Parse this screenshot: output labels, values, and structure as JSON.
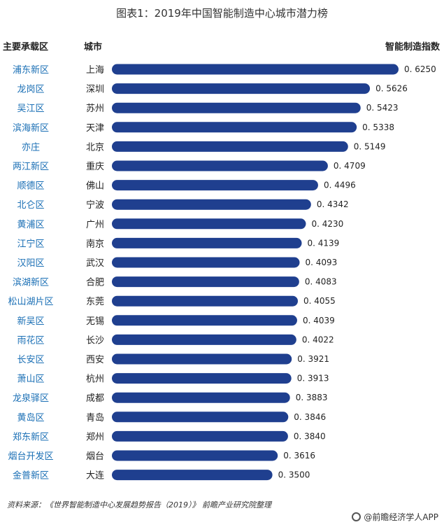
{
  "title": "图表1：2019年中国智能制造中心城市潜力榜",
  "headers": {
    "zone": "主要承载区",
    "city": "城市",
    "index": "智能制造指数"
  },
  "source": "资料来源：《世界智能制造中心发展趋势报告（2019）》 前瞻产业研究院整理",
  "brand": "@前瞻经济学人APP",
  "colors": {
    "bar": "#1f3f8f",
    "zone_text": "#1a6fb5"
  },
  "chart_data": {
    "type": "bar",
    "orientation": "horizontal",
    "categories": [
      "上海",
      "深圳",
      "苏州",
      "天津",
      "北京",
      "重庆",
      "佛山",
      "宁波",
      "广州",
      "南京",
      "武汉",
      "合肥",
      "东莞",
      "无锡",
      "长沙",
      "西安",
      "杭州",
      "成都",
      "青岛",
      "郑州",
      "烟台",
      "大连"
    ],
    "zones": [
      "浦东新区",
      "龙岗区",
      "吴江区",
      "滨海新区",
      "亦庄",
      "两江新区",
      "顺德区",
      "北仑区",
      "黄浦区",
      "江宁区",
      "汉阳区",
      "滨湖新区",
      "松山湖片区",
      "新吴区",
      "雨花区",
      "长安区",
      "萧山区",
      "龙泉驿区",
      "黄岛区",
      "郑东新区",
      "烟台开发区",
      "金普新区"
    ],
    "values": [
      0.625,
      0.5626,
      0.5423,
      0.5338,
      0.5149,
      0.4709,
      0.4496,
      0.4342,
      0.423,
      0.4139,
      0.4093,
      0.4083,
      0.4055,
      0.4039,
      0.4022,
      0.3921,
      0.3913,
      0.3883,
      0.3846,
      0.384,
      0.3616,
      0.35
    ],
    "value_labels": [
      "0. 6250",
      "0. 5626",
      "0. 5423",
      "0. 5338",
      "0. 5149",
      "0. 4709",
      "0. 4496",
      "0. 4342",
      "0. 4230",
      "0. 4139",
      "0. 4093",
      "0. 4083",
      "0. 4055",
      "0. 4039",
      "0. 4022",
      "0. 3921",
      "0. 3913",
      "0. 3883",
      "0. 3846",
      "0. 3840",
      "0. 3616",
      "0. 3500"
    ]
  }
}
